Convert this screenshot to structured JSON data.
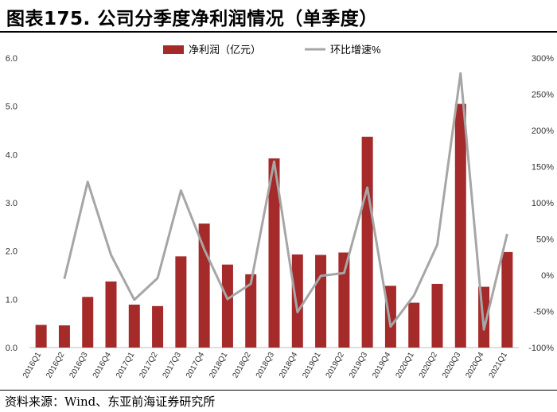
{
  "title": "图表175. 公司分季度净利润情况（单季度）",
  "source": "资料来源：Wind、东亚前海证券研究所",
  "chart_data": {
    "type": "bar",
    "categories": [
      "2016Q1",
      "2016Q2",
      "2016Q3",
      "2016Q4",
      "2017Q1",
      "2017Q2",
      "2017Q3",
      "2017Q4",
      "2018Q1",
      "2018Q2",
      "2018Q3",
      "2018Q4",
      "2019Q1",
      "2019Q2",
      "2019Q3",
      "2019Q4",
      "2020Q1",
      "2020Q2",
      "2020Q3",
      "2020Q4",
      "2021Q1"
    ],
    "series": [
      {
        "name": "净利润（亿元）",
        "type": "bar",
        "axis": "left",
        "color": "#a52a2a",
        "values": [
          0.47,
          0.46,
          1.05,
          1.37,
          0.89,
          0.86,
          1.89,
          2.57,
          1.72,
          1.52,
          3.92,
          1.93,
          1.92,
          1.97,
          4.37,
          1.28,
          0.93,
          1.32,
          5.05,
          1.26,
          1.98
        ]
      },
      {
        "name": "环比增速%",
        "type": "line",
        "axis": "right",
        "color": "#a6a6a6",
        "values": [
          null,
          -5,
          129,
          28,
          -34,
          -4,
          117,
          36,
          -33,
          -12,
          157,
          -51,
          -1,
          3,
          121,
          -71,
          -28,
          42,
          279,
          -75,
          57
        ]
      }
    ],
    "ylim_left": [
      0,
      6
    ],
    "ylim_right": [
      -100,
      300
    ],
    "yticks_left": [
      "0.0",
      "1.0",
      "2.0",
      "3.0",
      "4.0",
      "5.0",
      "6.0"
    ],
    "yticks_right": [
      "-100%",
      "-50%",
      "0%",
      "50%",
      "100%",
      "150%",
      "200%",
      "250%",
      "300%"
    ],
    "legend_position": "top-center",
    "grid": false
  }
}
